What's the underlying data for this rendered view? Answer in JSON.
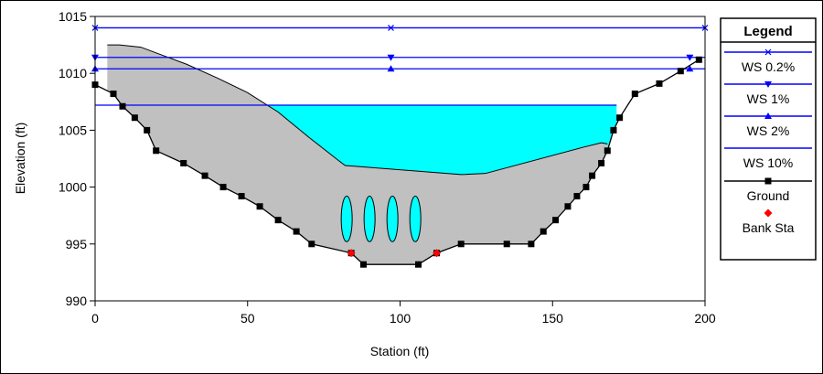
{
  "chart_data": {
    "type": "line",
    "xlabel": "Station (ft)",
    "ylabel": "Elevation (ft)",
    "xlim": [
      0,
      200
    ],
    "ylim": [
      990,
      1015
    ],
    "x_ticks": [
      0,
      50,
      100,
      150,
      200
    ],
    "y_ticks": [
      990,
      995,
      1000,
      1005,
      1010,
      1015
    ],
    "legend": {
      "title": "Legend",
      "position": "right",
      "entries": [
        {
          "label": "WS 0.2%",
          "color": "#0000ff",
          "marker": "x"
        },
        {
          "label": "WS 1%",
          "color": "#0000ff",
          "marker": "triangle-down"
        },
        {
          "label": "WS 2%",
          "color": "#0000ff",
          "marker": "triangle-up"
        },
        {
          "label": "WS 10%",
          "color": "#0000ff",
          "marker": "none"
        },
        {
          "label": "Ground",
          "color": "#000000",
          "marker": "square"
        },
        {
          "label": "Bank Sta",
          "color": "#ff0000",
          "marker": "diamond"
        }
      ]
    },
    "water_surfaces": [
      {
        "name": "WS 0.2%",
        "elevation": 1014.0,
        "x_start": 0,
        "x_end": 200,
        "marker_x": [
          0,
          97,
          200
        ]
      },
      {
        "name": "WS 1%",
        "elevation": 1011.4,
        "x_start": 0,
        "x_end": 200,
        "marker_x": [
          0,
          97,
          195
        ]
      },
      {
        "name": "WS 2%",
        "elevation": 1010.4,
        "x_start": 0,
        "x_end": 200,
        "marker_x": [
          0,
          97,
          195
        ]
      },
      {
        "name": "WS 10%",
        "elevation": 1007.2,
        "x_start": 0,
        "x_end": 171
      }
    ],
    "ground": {
      "x": [
        0,
        6,
        9,
        13,
        17,
        20,
        29,
        36,
        42,
        48,
        54,
        60,
        66,
        71,
        84,
        88,
        106,
        112,
        120,
        135,
        143,
        147,
        151,
        155,
        158,
        161,
        163,
        166,
        168,
        170,
        172,
        177,
        185,
        192,
        198
      ],
      "y": [
        1009,
        1008.2,
        1007.1,
        1006.1,
        1005,
        1003.2,
        1002.1,
        1001,
        1000,
        999.2,
        998.3,
        997.1,
        996.1,
        995,
        994.2,
        993.2,
        993.2,
        994.2,
        995,
        995,
        995,
        996.1,
        997.1,
        998.3,
        999.2,
        1000,
        1001,
        1002.1,
        1003.2,
        1005,
        1006.1,
        1008.2,
        1009.1,
        1010.2,
        1011.2
      ]
    },
    "bank_stations": {
      "x": [
        84,
        112
      ],
      "y": [
        994.2,
        994.2
      ]
    },
    "obstruction_outline": {
      "x": [
        4,
        4,
        8,
        15,
        22,
        30,
        40,
        50,
        60,
        70,
        80,
        82,
        120,
        128,
        160,
        166,
        168
      ],
      "y": [
        1009.5,
        1012.5,
        1012.5,
        1012.3,
        1011.6,
        1010.8,
        1009.6,
        1008.3,
        1006.6,
        1004.4,
        1002.3,
        1001.9,
        1001.1,
        1001.2,
        1003.5,
        1003.9,
        1003.8
      ]
    },
    "culverts": [
      {
        "x": 82.5,
        "y_center": 997.2,
        "half_width": 2,
        "half_height": 2
      },
      {
        "x": 90,
        "y_center": 997.2,
        "half_width": 2,
        "half_height": 2
      },
      {
        "x": 97.5,
        "y_center": 997.2,
        "half_width": 2,
        "half_height": 2
      },
      {
        "x": 105,
        "y_center": 997.2,
        "half_width": 2,
        "half_height": 2
      }
    ]
  }
}
